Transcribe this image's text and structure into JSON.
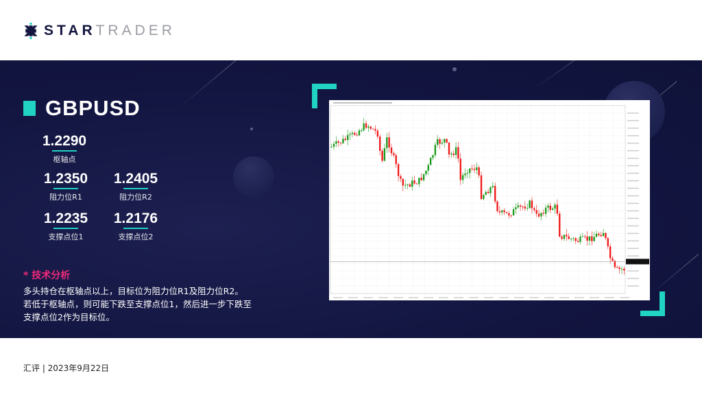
{
  "brand": {
    "logo_bold": "STAR",
    "logo_light": "TRADER"
  },
  "symbol": "GBPUSD",
  "levels": {
    "pivot": {
      "value": "1.2290",
      "label": "枢轴点"
    },
    "r1": {
      "value": "1.2350",
      "label": "阻力位R1"
    },
    "r2": {
      "value": "1.2405",
      "label": "阻力位R2"
    },
    "s1": {
      "value": "1.2235",
      "label": "支撑点位1"
    },
    "s2": {
      "value": "1.2176",
      "label": "支撑点位2"
    }
  },
  "analysis": {
    "heading": "* 技术分析",
    "lines": [
      "多头持仓在枢轴点以上，目标位为阻力位R1及阻力位R2。",
      "若低于枢轴点，则可能下跌至支撑点位1，然后进一步下跌至",
      "支撑点位2作为目标位。"
    ]
  },
  "chart": {
    "type": "candlestick",
    "trend": "down",
    "up_color": "#1a9a1a",
    "down_color": "#f01818",
    "accent": "#20d3c2"
  },
  "footer": "汇评 | 2023年9月22日"
}
